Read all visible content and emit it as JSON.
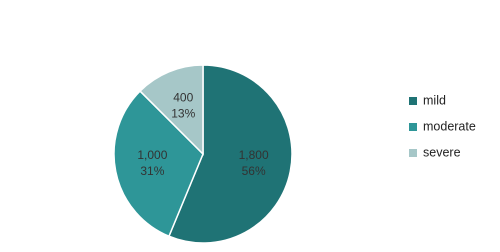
{
  "chart_data": {
    "type": "pie",
    "categories": [
      "mild",
      "moderate",
      "severe"
    ],
    "values": [
      1800,
      1000,
      400
    ],
    "value_labels": [
      "1,800",
      "1,000",
      "400"
    ],
    "percent_labels": [
      "56%",
      "31%",
      "13%"
    ],
    "colors": [
      "#1f7375",
      "#2e9698",
      "#a6c7c8"
    ],
    "legend": "right"
  }
}
